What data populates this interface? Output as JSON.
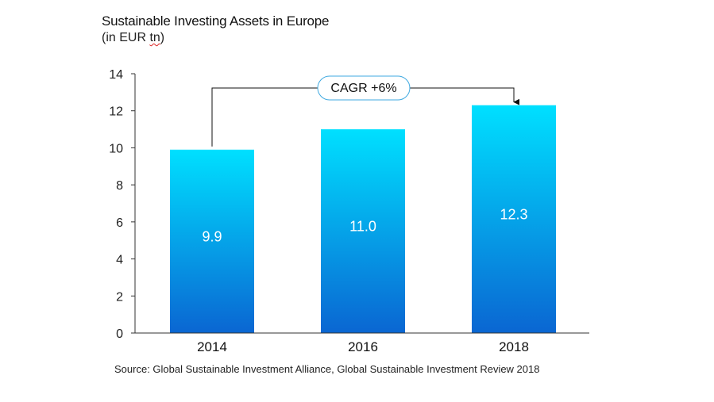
{
  "chart_data": {
    "type": "bar",
    "title": "Sustainable Investing Assets in Europe",
    "subtitle_prefix": "(in EUR ",
    "subtitle_unit": "tn",
    "subtitle_suffix": ")",
    "categories": [
      "2014",
      "2016",
      "2018"
    ],
    "values": [
      9.9,
      11.0,
      12.3
    ],
    "value_labels": [
      "9.9",
      "11.0",
      "12.3"
    ],
    "ylim": [
      0,
      14
    ],
    "yticks": [
      0,
      2,
      4,
      6,
      8,
      10,
      12,
      14
    ],
    "xlabel": "",
    "ylabel": "",
    "annotation": {
      "text": "CAGR +6%",
      "from": "2014",
      "to": "2018"
    },
    "colors": {
      "bar_top": "#00E0FF",
      "bar_bottom": "#0A66D2",
      "axis": "#333333",
      "annotation_border": "#3FA9E0"
    }
  },
  "source": "Source: Global Sustainable Investment Alliance, Global Sustainable Investment Review 2018"
}
